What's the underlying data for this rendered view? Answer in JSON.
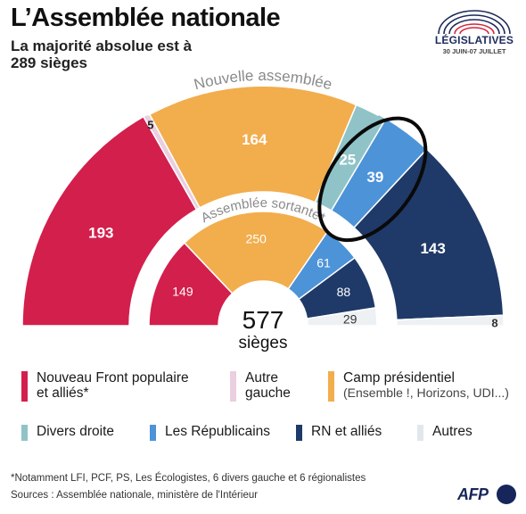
{
  "header": {
    "title": "L’Assemblée nationale",
    "subtitle": "La majorité absolue est à 289 sièges"
  },
  "logo": {
    "name": "LÉGISLATIVES",
    "dates": "30 JUIN-07 JUILLET",
    "colors": [
      "#1b2a5a",
      "#ffffff",
      "#d7263d"
    ]
  },
  "chart_data": {
    "type": "hemicycle",
    "outer_ring_label": "Nouvelle assemblée",
    "inner_ring_label": "Assemblée sortante*",
    "total_label": "577",
    "total_unit": "sièges",
    "categories": [
      "Nouveau Front populaire et alliés*",
      "Autre gauche",
      "Camp présidentiel",
      "Divers droite",
      "Les Républicains",
      "RN et alliés",
      "Autres"
    ],
    "colors": [
      "#d31f4c",
      "#e9cfe0",
      "#f2ad4d",
      "#8fc3c8",
      "#4d93d8",
      "#1f3a68",
      "#eef1f4"
    ],
    "series": [
      {
        "name": "Nouvelle assemblée",
        "values": [
          193,
          5,
          164,
          25,
          39,
          143,
          8
        ]
      },
      {
        "name": "Assemblée sortante*",
        "values": [
          149,
          0,
          250,
          0,
          61,
          88,
          29
        ]
      }
    ],
    "highlight_category": "Les Républicains"
  },
  "legend": [
    {
      "label": "Nouveau Front populaire",
      "label2": "et alliés*",
      "sub": "",
      "color": "#d31f4c"
    },
    {
      "label": "Autre",
      "label2": "gauche",
      "sub": "",
      "color": "#e9cfe0"
    },
    {
      "label": "Camp présidentiel",
      "label2": "",
      "sub": "(Ensemble !, Horizons, UDI...)",
      "color": "#f2ad4d"
    },
    {
      "label": "Divers droite",
      "label2": "",
      "sub": "",
      "color": "#8fc3c8"
    },
    {
      "label": "Les Républicains",
      "label2": "",
      "sub": "",
      "color": "#4d93d8"
    },
    {
      "label": "RN et alliés",
      "label2": "",
      "sub": "",
      "color": "#1f3a68"
    },
    {
      "label": "Autres",
      "label2": "",
      "sub": "",
      "color": "#eef1f4"
    }
  ],
  "footer": {
    "footnote": "*Notamment LFI, PCF, PS, Les Écologistes, 6 divers gauche et 6 régionalistes",
    "sources": "Sources : Assemblée nationale, ministère de l'Intérieur",
    "brand": "AFP"
  }
}
